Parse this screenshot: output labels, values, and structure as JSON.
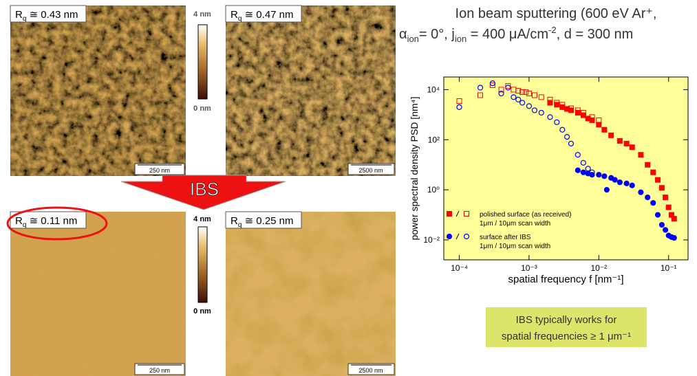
{
  "title_line1": "Ion beam sputtering (600 eV Ar⁺,",
  "title_line2": [
    "α",
    "ion",
    "= 0°, j",
    "ion",
    " = 400 μA/cm",
    "-2",
    ", d = 300 nm"
  ],
  "images": [
    {
      "label": [
        "R",
        "q",
        " ≅ 0.43 nm"
      ],
      "scale_bar": "250 nm"
    },
    {
      "label": [
        "R",
        "q",
        " ≅ 0.47 nm"
      ],
      "scale_bar": "2500 nm"
    },
    {
      "label": [
        "R",
        "q",
        " ≅ 0.11 nm"
      ],
      "scale_bar": "250 nm"
    },
    {
      "label": [
        "R",
        "q",
        " ≅ 0.25 nm"
      ],
      "scale_bar": "2500 nm"
    }
  ],
  "colorbars": [
    {
      "top": "4 nm",
      "bottom": "0 nm"
    },
    {
      "top": "4 nm",
      "bottom": "0 nm"
    }
  ],
  "arrow_label": "IBS",
  "note": [
    "IBS typically works for",
    "spatial frequencies ≥ 1 μm⁻¹"
  ],
  "chart_data": {
    "type": "scatter",
    "x_label": "spatial frequency f [nm⁻¹]",
    "y_label": "power spectral density PSD [nm⁴]",
    "xscale": "log",
    "yscale": "log",
    "xlim": [
      6e-05,
      0.19
    ],
    "ylim": [
      0.0016,
      32000
    ],
    "xticks": [
      {
        "value": 0.0001,
        "label": "10⁻⁴"
      },
      {
        "value": 0.001,
        "label": "10⁻³"
      },
      {
        "value": 0.01,
        "label": "10⁻²"
      },
      {
        "value": 0.1,
        "label": "10⁻¹"
      }
    ],
    "yticks": [
      {
        "value": 0.01,
        "label": "10⁻²"
      },
      {
        "value": 1,
        "label": "10⁰"
      },
      {
        "value": 100,
        "label": "10²"
      },
      {
        "value": 10000,
        "label": "10⁴"
      }
    ],
    "background": "#ffff99",
    "legend": [
      {
        "label": "polished surface (as received)",
        "sublabel": "1μm / 10μm scan width"
      },
      {
        "label": "surface after IBS",
        "sublabel": "1μm / 10μm scan width"
      }
    ],
    "series": [
      {
        "color": "#ff0000",
        "marker": "square",
        "filled": true,
        "x": [
          0.002,
          0.0025,
          0.003,
          0.0035,
          0.004,
          0.005,
          0.006,
          0.007,
          0.008,
          0.01,
          0.012,
          0.015,
          0.02,
          0.025,
          0.03,
          0.04,
          0.05,
          0.06,
          0.07,
          0.08,
          0.09,
          0.1,
          0.11,
          0.12
        ],
        "values": [
          3000,
          2500,
          2000,
          1700,
          1500,
          1200,
          950,
          700,
          600,
          400,
          250,
          150,
          90,
          70,
          50,
          25,
          10,
          5,
          2.5,
          1.2,
          0.5,
          0.2,
          0.1,
          0.07
        ]
      },
      {
        "color": "#ff0000",
        "marker": "square",
        "filled": false,
        "x": [
          0.0001,
          0.0002,
          0.0003,
          0.0004,
          0.0005,
          0.0006,
          0.0007,
          0.0008,
          0.0009,
          0.001,
          0.0012,
          0.0015,
          0.002,
          0.0025,
          0.003,
          0.004,
          0.005,
          0.006,
          0.008,
          0.01
        ],
        "values": [
          3500,
          6000,
          15000,
          10000,
          14000,
          10000,
          9000,
          8000,
          8000,
          7000,
          6000,
          5000,
          4000,
          3000,
          2500,
          1800,
          1500,
          1200,
          800,
          600
        ]
      },
      {
        "color": "#0000ff",
        "marker": "circle",
        "filled": true,
        "x": [
          0.005,
          0.006,
          0.007,
          0.008,
          0.01,
          0.012,
          0.013,
          0.015,
          0.017,
          0.02,
          0.025,
          0.03,
          0.04,
          0.05,
          0.06,
          0.07,
          0.08,
          0.09,
          0.1,
          0.11,
          0.12
        ],
        "values": [
          6,
          5,
          4.5,
          4,
          4,
          3.5,
          1,
          3,
          2.5,
          2,
          1.8,
          1.5,
          0.8,
          0.5,
          0.3,
          0.1,
          0.04,
          0.025,
          0.015,
          0.013,
          0.012
        ]
      },
      {
        "color": "#0000ff",
        "marker": "circle",
        "filled": false,
        "x": [
          0.0001,
          0.0002,
          0.0003,
          0.0004,
          0.0005,
          0.0006,
          0.0007,
          0.0008,
          0.001,
          0.0012,
          0.0015,
          0.002,
          0.0025,
          0.003,
          0.0035,
          0.004,
          0.005,
          0.006,
          0.007,
          0.008
        ],
        "values": [
          2000,
          12000,
          18000,
          7000,
          12000,
          5000,
          4000,
          3000,
          2200,
          1500,
          1200,
          800,
          500,
          250,
          130,
          70,
          25,
          12,
          7,
          5
        ]
      }
    ]
  }
}
